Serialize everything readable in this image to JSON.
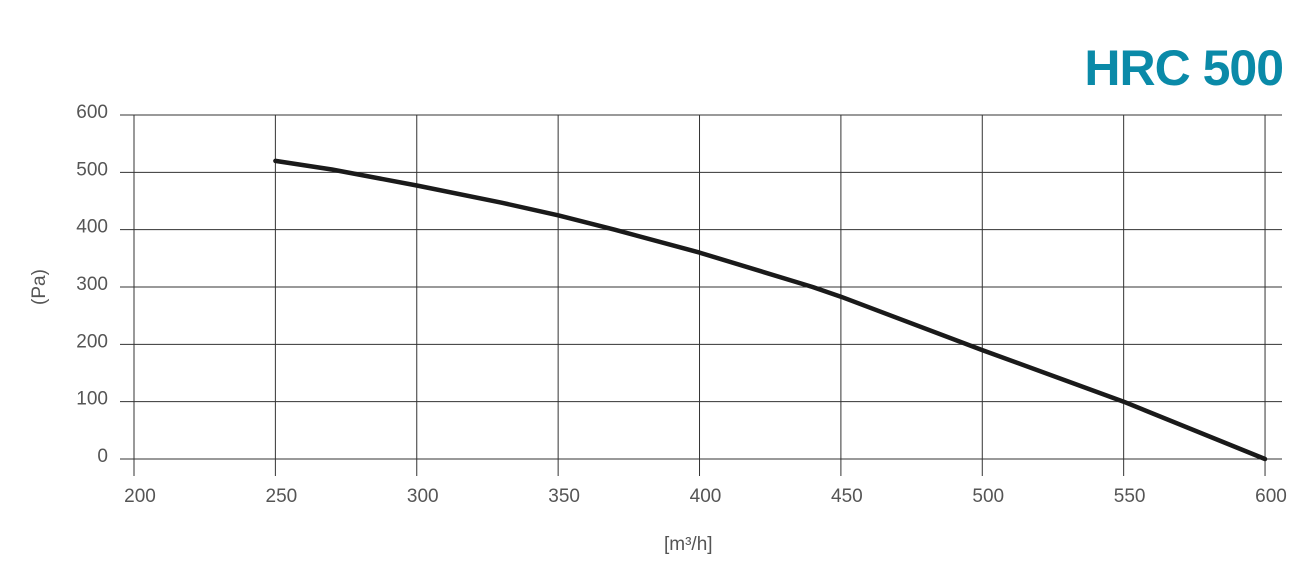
{
  "chart_data": {
    "type": "line",
    "title": "HRC 500",
    "xlabel": "[m³/h]",
    "ylabel": "(Pa)",
    "x": [
      250,
      270,
      300,
      330,
      350,
      370,
      400,
      440,
      450,
      500,
      550,
      600
    ],
    "series": [
      {
        "name": "HRC 500",
        "color": "#1a1a1a",
        "values": [
          520,
          505,
          477,
          447,
          425,
          400,
          360,
          300,
          283,
          190,
          100,
          0
        ]
      }
    ],
    "xlim": [
      200,
      606
    ],
    "ylim": [
      0,
      600
    ],
    "xticks": [
      200,
      250,
      300,
      350,
      400,
      450,
      500,
      550,
      600
    ],
    "yticks": [
      0,
      100,
      200,
      300,
      400,
      500,
      600
    ],
    "grid": true,
    "title_color": "#0a8aa8"
  }
}
